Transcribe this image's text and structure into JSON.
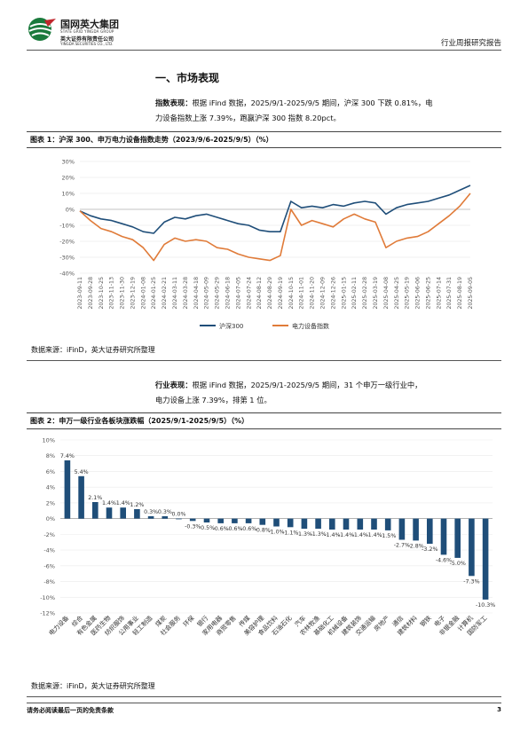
{
  "header": {
    "company_cn": "国网英大集团",
    "company_en": "STATE GRID YINGDA GROUP",
    "sub_cn": "英大证券有限责任公司",
    "sub_en": "YINGDA SECURITIES CO., LTD.",
    "report_type": "行业周报研究报告"
  },
  "section_title": "一、市场表现",
  "para1": {
    "lead": "指数表现：",
    "text1": "根据 iFind 数据，2025/9/1-2025/9/5 期间，沪深 300 下跌 0.81%，电",
    "text2": "力设备指数上涨 7.39%，跑赢沪深 300 指数 8.20pct。"
  },
  "fig1_caption": "图表 1：沪深 300、申万电力设备指数走势（2023/9/6-2025/9/5）（%）",
  "fig1_source": "数据来源：iFinD，英大证券研究所整理",
  "para2": {
    "lead": "行业表现：",
    "text1": "根据 iFind 数据，2025/9/1-2025/9/5 期间，31 个申万一级行业中，",
    "text2": "电力设备上涨 7.39%，排第 1 位。"
  },
  "fig2_caption": "图表 2：申万一级行业各板块涨跌幅（2025/9/1-2025/9/5）（%）",
  "fig2_source": "数据来源：iFinD，英大证券研究所整理",
  "footer": {
    "disclaimer": "请务必阅读最后一页的免责条款",
    "page": "3"
  },
  "colors": {
    "series_hs300": "#1f4e79",
    "series_power": "#e07b39",
    "bar": "#1f4e79"
  },
  "chart_data": [
    {
      "type": "line",
      "x": [
        "2023-09-11",
        "2023-09-28",
        "2023-10-25",
        "2023-11-13",
        "2023-11-30",
        "2023-12-19",
        "2024-01-08",
        "2024-01-25",
        "2024-02-21",
        "2024-03-11",
        "2024-03-28",
        "2024-04-18",
        "2024-05-09",
        "2024-05-29",
        "2024-06-18",
        "2024-07-05",
        "2024-07-24",
        "2024-08-12",
        "2024-08-29",
        "2024-09-19",
        "2024-10-15",
        "2024-11-01",
        "2024-11-20",
        "2024-12-09",
        "2024-12-26",
        "2025-01-15",
        "2025-02-11",
        "2025-02-28",
        "2025-03-19",
        "2025-04-08",
        "2025-04-25",
        "2025-05-19",
        "2025-06-06",
        "2025-06-25",
        "2025-07-14",
        "2025-07-31",
        "2025-08-19",
        "2025-09-05"
      ],
      "series": [
        {
          "name": "沪深300",
          "values": [
            -1,
            -4,
            -6,
            -7,
            -9,
            -11,
            -14,
            -15,
            -8,
            -5,
            -6,
            -4,
            -3,
            -5,
            -7,
            -9,
            -10,
            -13,
            -14,
            -14,
            5,
            1,
            2,
            1,
            3,
            2,
            4,
            5,
            4,
            -3,
            1,
            3,
            4,
            5,
            7,
            9,
            12,
            15
          ]
        },
        {
          "name": "电力设备指数",
          "values": [
            -1,
            -7,
            -12,
            -14,
            -17,
            -19,
            -24,
            -32,
            -22,
            -18,
            -20,
            -19,
            -20,
            -24,
            -25,
            -28,
            -30,
            -31,
            -32,
            -29,
            0,
            -10,
            -7,
            -9,
            -11,
            -6,
            -3,
            -6,
            -8,
            -24,
            -20,
            -18,
            -17,
            -14,
            -9,
            -4,
            2,
            10
          ]
        }
      ],
      "yticks": [
        "30%",
        "20%",
        "10%",
        "0%",
        "-10%",
        "-20%",
        "-30%",
        "-40%"
      ],
      "ylim": [
        -40,
        30
      ]
    },
    {
      "type": "bar",
      "categories": [
        "电力设备",
        "综合",
        "有色金属",
        "医药生物",
        "纺织服饰",
        "公用事业",
        "轻工制造",
        "煤炭",
        "社会服务",
        "环保",
        "银行",
        "家用电器",
        "商贸零售",
        "传媒",
        "美容护理",
        "食品饮料",
        "石油石化",
        "汽车",
        "农林牧渔",
        "基础化工",
        "机械设备",
        "建筑装饰",
        "交通运输",
        "房地产",
        "通信",
        "建筑材料",
        "钢铁",
        "电子",
        "非银金融",
        "计算机",
        "国防军工"
      ],
      "values": [
        7.4,
        5.4,
        2.1,
        1.4,
        1.4,
        1.2,
        0.3,
        0.3,
        0.0,
        -0.3,
        -0.5,
        -0.6,
        -0.6,
        -0.6,
        -0.8,
        -1.0,
        -1.1,
        -1.3,
        -1.3,
        -1.4,
        -1.4,
        -1.4,
        -1.4,
        -1.5,
        -2.7,
        -2.8,
        -3.2,
        -4.6,
        -5.0,
        -7.3,
        -10.3
      ],
      "labels": [
        "7.4%",
        "5.4%",
        "2.1%",
        "1.4%",
        "1.4%",
        "1.2%",
        "0.3%",
        "0.3%",
        "0.0%",
        "-0.3%",
        "-0.5%",
        "-0.6%",
        "-0.6%",
        "-0.6%",
        "-0.8%",
        "-1.0%",
        "-1.1%",
        "-1.3%",
        "-1.3%",
        "-1.4%",
        "-1.4%",
        "-1.4%",
        "-1.4%",
        "-1.5%",
        "-2.7%",
        "-2.8%",
        "-3.2%",
        "-4.6%",
        "-5.0%",
        "-7.3%",
        "-10.3%"
      ],
      "yticks": [
        "10%",
        "8%",
        "6%",
        "4%",
        "2%",
        "0%",
        "-2%",
        "-4%",
        "-6%",
        "-8%",
        "-10%",
        "-12%"
      ],
      "ylim": [
        -12,
        10
      ]
    }
  ]
}
